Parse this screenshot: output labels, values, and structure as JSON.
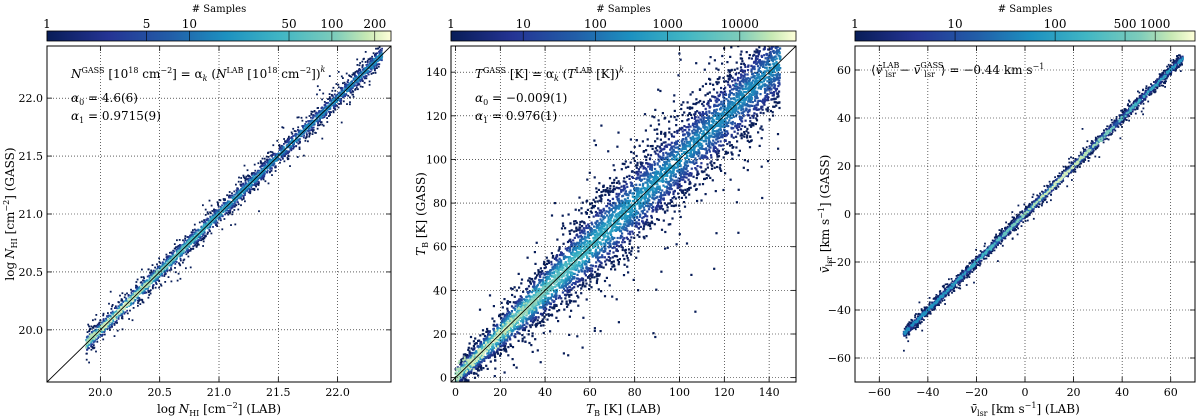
{
  "chart_data": [
    {
      "type": "heatmap",
      "panel": "column-density",
      "colorbar": {
        "title": "# Samples",
        "scale": "log",
        "range": [
          1,
          260
        ],
        "ticks": [
          1,
          5,
          10,
          50,
          100,
          200
        ],
        "tick_labels": [
          "1",
          "5",
          "10",
          "50",
          "100",
          "200"
        ]
      },
      "xlabel": "log N_HI [cm^-2] (LAB)",
      "ylabel": "log N_HI [cm^-2] (GASS)",
      "xlabel_parts": {
        "pre": "log",
        "main": "N",
        "sub": "HI",
        "post": " [cm",
        "sup": "−2",
        "tail": "] (LAB)"
      },
      "ylabel_parts": {
        "pre": "log",
        "main": "N",
        "sub": "HI",
        "post": " [cm",
        "sup": "−2",
        "tail": "] (GASS)"
      },
      "xlim": [
        19.55,
        22.45
      ],
      "ylim": [
        19.55,
        22.45
      ],
      "xticks": [
        20.0,
        20.5,
        21.0,
        21.5,
        22.0
      ],
      "xtick_labels": [
        "20.0",
        "20.5",
        "21.0",
        "21.5",
        "22.0"
      ],
      "yticks": [
        20.0,
        20.5,
        21.0,
        21.5,
        22.0
      ],
      "ytick_labels": [
        "20.0",
        "20.5",
        "21.0",
        "21.5",
        "22.0"
      ],
      "grid": true,
      "fit": {
        "a0": 4.6,
        "a1": 0.9715
      },
      "reference_line": "one-to-one",
      "data_extent": {
        "x": [
          19.88,
          22.38
        ],
        "core_offset": 0.0
      },
      "annotation": {
        "formula": "N^GASS [10^18 cm^-2] = α_k (N^LAB [10^18 cm^-2])^k",
        "formula_parts": {
          "N1": "N",
          "sup1": "GASS",
          "u1": " [10",
          "e1": "18",
          "u1b": " cm",
          "e1b": "−2",
          "u1c": "] = α",
          "k": "k",
          "u2": " (",
          "N2": "N",
          "sup2": "LAB",
          "u3": " [10",
          "e3": "18",
          "u3b": " cm",
          "e3b": "−2",
          "u3c": "])",
          "pow": "k"
        },
        "lines": [
          {
            "sym": "α",
            "sub": "0",
            "value": " = 4.6(6)"
          },
          {
            "sym": "α",
            "sub": "1",
            "value": " = 0.9715(9)"
          }
        ]
      }
    },
    {
      "type": "heatmap",
      "panel": "brightness-temperature",
      "colorbar": {
        "title": "# Samples",
        "scale": "log",
        "range": [
          1,
          60000
        ],
        "ticks": [
          1,
          10,
          100,
          1000,
          10000
        ],
        "tick_labels": [
          "1",
          "10",
          "100",
          "1000",
          "10000"
        ]
      },
      "xlabel": "T_B [K] (LAB)",
      "ylabel": "T_B [K] (GASS)",
      "xlabel_parts": {
        "main": "T",
        "sub": "B",
        "tail": " [K] (LAB)"
      },
      "ylabel_parts": {
        "main": "T",
        "sub": "B",
        "tail": " [K] (GASS)"
      },
      "xlim": [
        -2,
        152
      ],
      "ylim": [
        -2,
        152
      ],
      "xticks": [
        0,
        20,
        40,
        60,
        80,
        100,
        120,
        140
      ],
      "xtick_labels": [
        "0",
        "20",
        "40",
        "60",
        "80",
        "100",
        "120",
        "140"
      ],
      "yticks": [
        0,
        20,
        40,
        60,
        80,
        100,
        120,
        140
      ],
      "ytick_labels": [
        "0",
        "20",
        "40",
        "60",
        "80",
        "100",
        "120",
        "140"
      ],
      "grid": true,
      "fit": {
        "a0": -0.009,
        "a1": 0.976
      },
      "reference_line": "one-to-one",
      "annotation": {
        "formula": "T^GASS [K] = α_k (T^LAB [K])^k",
        "formula_parts": {
          "T1": "T",
          "sup1": "GASS",
          "u1": " [K] = α",
          "k": "k",
          "u2": " (",
          "T2": "T",
          "sup2": "LAB",
          "u3": " [K])",
          "pow": "k"
        },
        "lines": [
          {
            "sym": "α",
            "sub": "0",
            "value": " = −0.009(1)"
          },
          {
            "sym": "α",
            "sub": "1",
            "value": " = 0.976(1)"
          }
        ]
      }
    },
    {
      "type": "heatmap",
      "panel": "velocity",
      "colorbar": {
        "title": "# Samples",
        "scale": "log",
        "range": [
          1,
          2500
        ],
        "ticks": [
          1,
          10,
          100,
          500,
          1000
        ],
        "tick_labels": [
          "1",
          "10",
          "100",
          "500",
          "1000"
        ]
      },
      "xlabel": "v̄_lsr [km s^-1] (LAB)",
      "ylabel": "v̄_lsr [km s^-1] (GASS)",
      "xlabel_parts": {
        "main": "v̄",
        "sub": "lsr",
        "post": " [km s",
        "sup": "−1",
        "tail": "] (LAB)"
      },
      "ylabel_parts": {
        "main": "v̄",
        "sub": "lsr",
        "post": " [km s",
        "sup": "−1",
        "tail": "] (GASS)"
      },
      "xlim": [
        -70,
        70
      ],
      "ylim": [
        -70,
        70
      ],
      "xticks": [
        -60,
        -40,
        -20,
        0,
        20,
        40,
        60
      ],
      "xtick_labels": [
        "−60",
        "−40",
        "−20",
        "0",
        "20",
        "40",
        "60"
      ],
      "yticks": [
        -60,
        -40,
        -20,
        0,
        20,
        40,
        60
      ],
      "ytick_labels": [
        "−60",
        "−40",
        "−20",
        "0",
        "20",
        "40",
        "60"
      ],
      "grid": true,
      "mean_offset": -0.44,
      "annotation": {
        "formula": "⟨v̄_lsr^LAB − v̄_lsr^GASS⟩ = −0.44 km s^-1",
        "formula_parts": {
          "open": "⟨",
          "v1": "v̄",
          "sub1": "lsr",
          "sup1": "LAB",
          "minus": " − ",
          "v2": "v̄",
          "sub2": "lsr",
          "sup2": "GASS",
          "close": "⟩ = −0.44 km s",
          "unit_sup": "−1"
        },
        "lines": []
      }
    }
  ]
}
